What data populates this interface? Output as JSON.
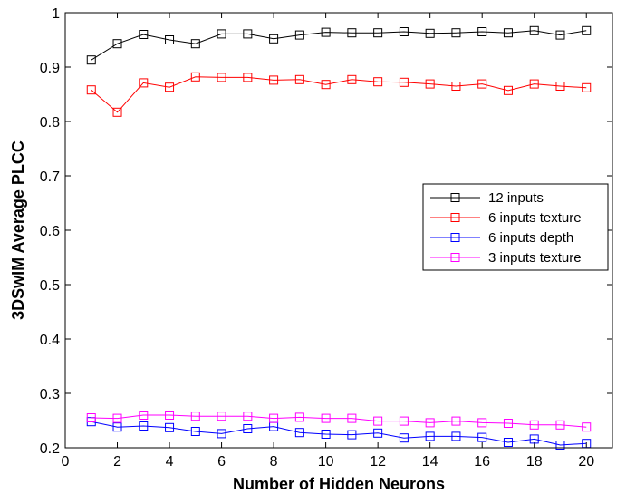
{
  "chart_data": {
    "type": "line",
    "xlabel": "Number of Hidden Neurons",
    "ylabel": "3DSwIM Average PLCC",
    "xlim": [
      0,
      21
    ],
    "ylim": [
      0.2,
      1.0
    ],
    "xticks": [
      0,
      2,
      4,
      6,
      8,
      10,
      12,
      14,
      16,
      18,
      20
    ],
    "yticks": [
      0.2,
      0.3,
      0.4,
      0.5,
      0.6,
      0.7,
      0.8,
      0.9,
      1.0
    ],
    "ytick_labels": [
      "0.2",
      "0.3",
      "0.4",
      "0.5",
      "0.6",
      "0.7",
      "0.8",
      "0.9",
      "1"
    ],
    "grid": false,
    "legend_position": "right",
    "x": [
      1,
      2,
      3,
      4,
      5,
      6,
      7,
      8,
      9,
      10,
      11,
      12,
      13,
      14,
      15,
      16,
      17,
      18,
      19,
      20
    ],
    "series": [
      {
        "name": "12 inputs",
        "color": "#000000",
        "marker": "square",
        "values": [
          0.913,
          0.943,
          0.96,
          0.95,
          0.943,
          0.961,
          0.961,
          0.952,
          0.959,
          0.964,
          0.963,
          0.963,
          0.965,
          0.962,
          0.963,
          0.965,
          0.963,
          0.967,
          0.959,
          0.967
        ]
      },
      {
        "name": "6 inputs texture",
        "color": "#ff0000",
        "marker": "square",
        "values": [
          0.858,
          0.817,
          0.871,
          0.863,
          0.882,
          0.881,
          0.881,
          0.876,
          0.877,
          0.868,
          0.877,
          0.873,
          0.872,
          0.869,
          0.865,
          0.869,
          0.857,
          0.869,
          0.865,
          0.862
        ]
      },
      {
        "name": "6 inputs depth",
        "color": "#0000ff",
        "marker": "square",
        "values": [
          0.248,
          0.238,
          0.24,
          0.237,
          0.23,
          0.226,
          0.235,
          0.239,
          0.228,
          0.225,
          0.224,
          0.227,
          0.218,
          0.221,
          0.221,
          0.219,
          0.21,
          0.216,
          0.205,
          0.208
        ]
      },
      {
        "name": "3 inputs texture",
        "color": "#ff00ff",
        "marker": "square",
        "values": [
          0.255,
          0.254,
          0.26,
          0.26,
          0.258,
          0.258,
          0.258,
          0.254,
          0.256,
          0.254,
          0.254,
          0.249,
          0.249,
          0.246,
          0.249,
          0.246,
          0.245,
          0.242,
          0.242,
          0.238
        ]
      }
    ]
  }
}
